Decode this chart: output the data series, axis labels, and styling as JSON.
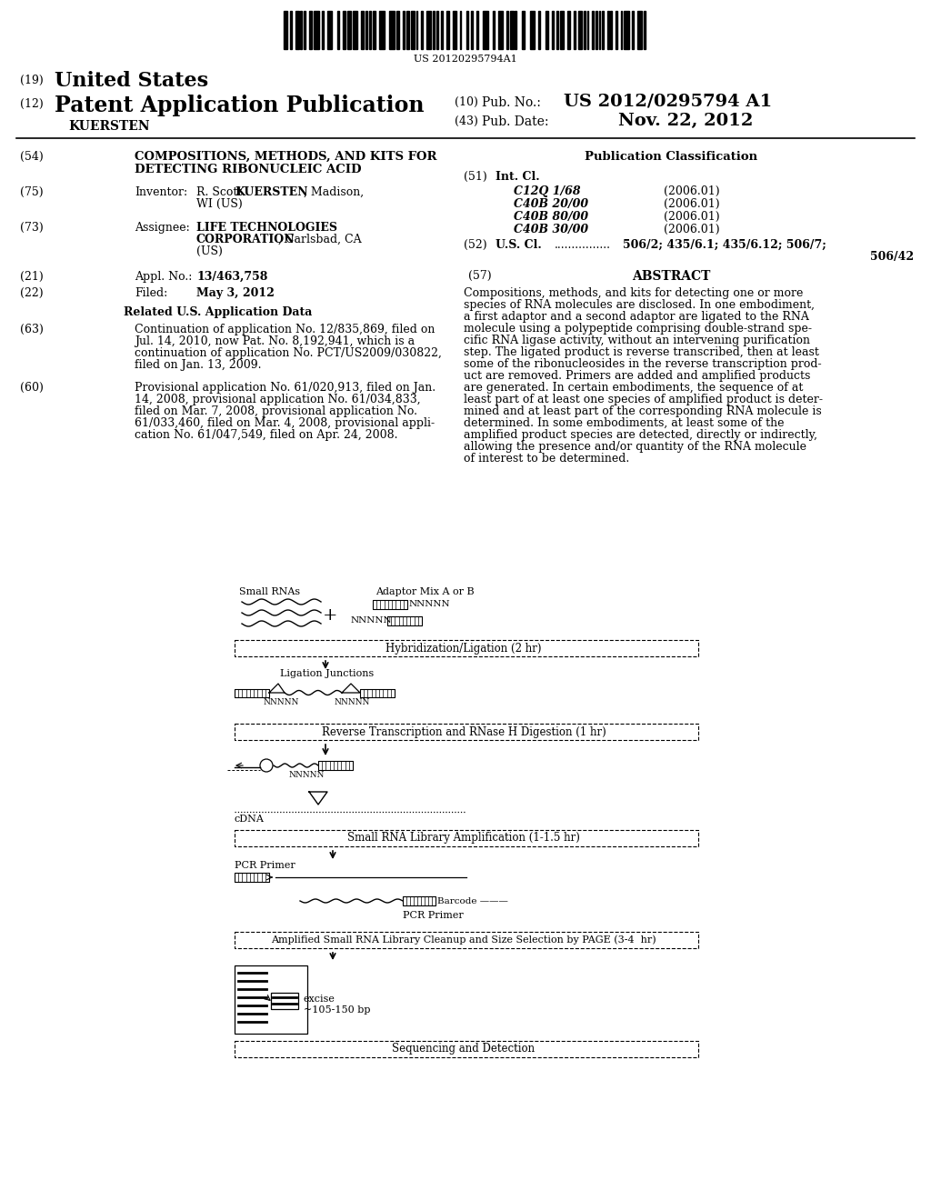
{
  "background_color": "#ffffff",
  "barcode_number": "US 20120295794A1",
  "patent_number": "US 2012/0295794 A1",
  "pub_date": "Nov. 22, 2012",
  "title": "COMPOSITIONS, METHODS, AND KITS FOR DETECTING RIBONUCLEIC ACID",
  "inventor_plain": "R. Scott ",
  "inventor_bold": "KUERSTEN",
  "inventor_end": ", Madison,",
  "inventor_line2": "WI (US)",
  "assignee_bold": "LIFE TECHNOLOGIES",
  "assignee_bold2": "CORPORATION",
  "assignee_plain": ", Carlsbad, CA",
  "assignee_line3": "(US)",
  "appl_no": "13/463,758",
  "filed": "May 3, 2012",
  "int_cl": [
    "C12Q 1/68",
    "C40B 20/00",
    "C40B 80/00",
    "C40B 30/00"
  ],
  "int_cl_dates": [
    "(2006.01)",
    "(2006.01)",
    "(2006.01)",
    "(2006.01)"
  ],
  "us_cl_line1": "506/2; 435/6.1; 435/6.12; 506/7;",
  "us_cl_line2": "506/42",
  "abstract": "Compositions, methods, and kits for detecting one or more species of RNA molecules are disclosed. In one embodiment, a first adaptor and a second adaptor are ligated to the RNA molecule using a polypeptide comprising double-strand spe-cific RNA ligase activity, without an intervening purification step. The ligated product is reverse transcribed, then at least some of the ribonucleosides in the reverse transcription prod-uct are removed. Primers are added and amplified products are generated. In certain embodiments, the sequence of at least part of at least one species of amplified product is deter-mined and at least part of the corresponding RNA molecule is determined. In some embodiments, at least some of the amplified product species are detected, directly or indirectly, allowing the presence and/or quantity of the RNA molecule of interest to be determined.",
  "lines63": [
    "Continuation of application No. 12/835,869, filed on",
    "Jul. 14, 2010, now Pat. No. 8,192,941, which is a",
    "continuation of application No. PCT/US2009/030822,",
    "filed on Jan. 13, 2009."
  ],
  "lines60": [
    "Provisional application No. 61/020,913, filed on Jan.",
    "14, 2008, provisional application No. 61/034,833,",
    "filed on Mar. 7, 2008, provisional application No.",
    "61/033,460, filed on Mar. 4, 2008, provisional appli-",
    "cation No. 61/047,549, filed on Apr. 24, 2008."
  ],
  "abstract_lines": [
    "Compositions, methods, and kits for detecting one or more",
    "species of RNA molecules are disclosed. In one embodiment,",
    "a first adaptor and a second adaptor are ligated to the RNA",
    "molecule using a polypeptide comprising double-strand spe-",
    "cific RNA ligase activity, without an intervening purification",
    "step. The ligated product is reverse transcribed, then at least",
    "some of the ribonucleosides in the reverse transcription prod-",
    "uct are removed. Primers are added and amplified products",
    "are generated. In certain embodiments, the sequence of at",
    "least part of at least one species of amplified product is deter-",
    "mined and at least part of the corresponding RNA molecule is",
    "determined. In some embodiments, at least some of the",
    "amplified product species are detected, directly or indirectly,",
    "allowing the presence and/or quantity of the RNA molecule",
    "of interest to be determined."
  ]
}
